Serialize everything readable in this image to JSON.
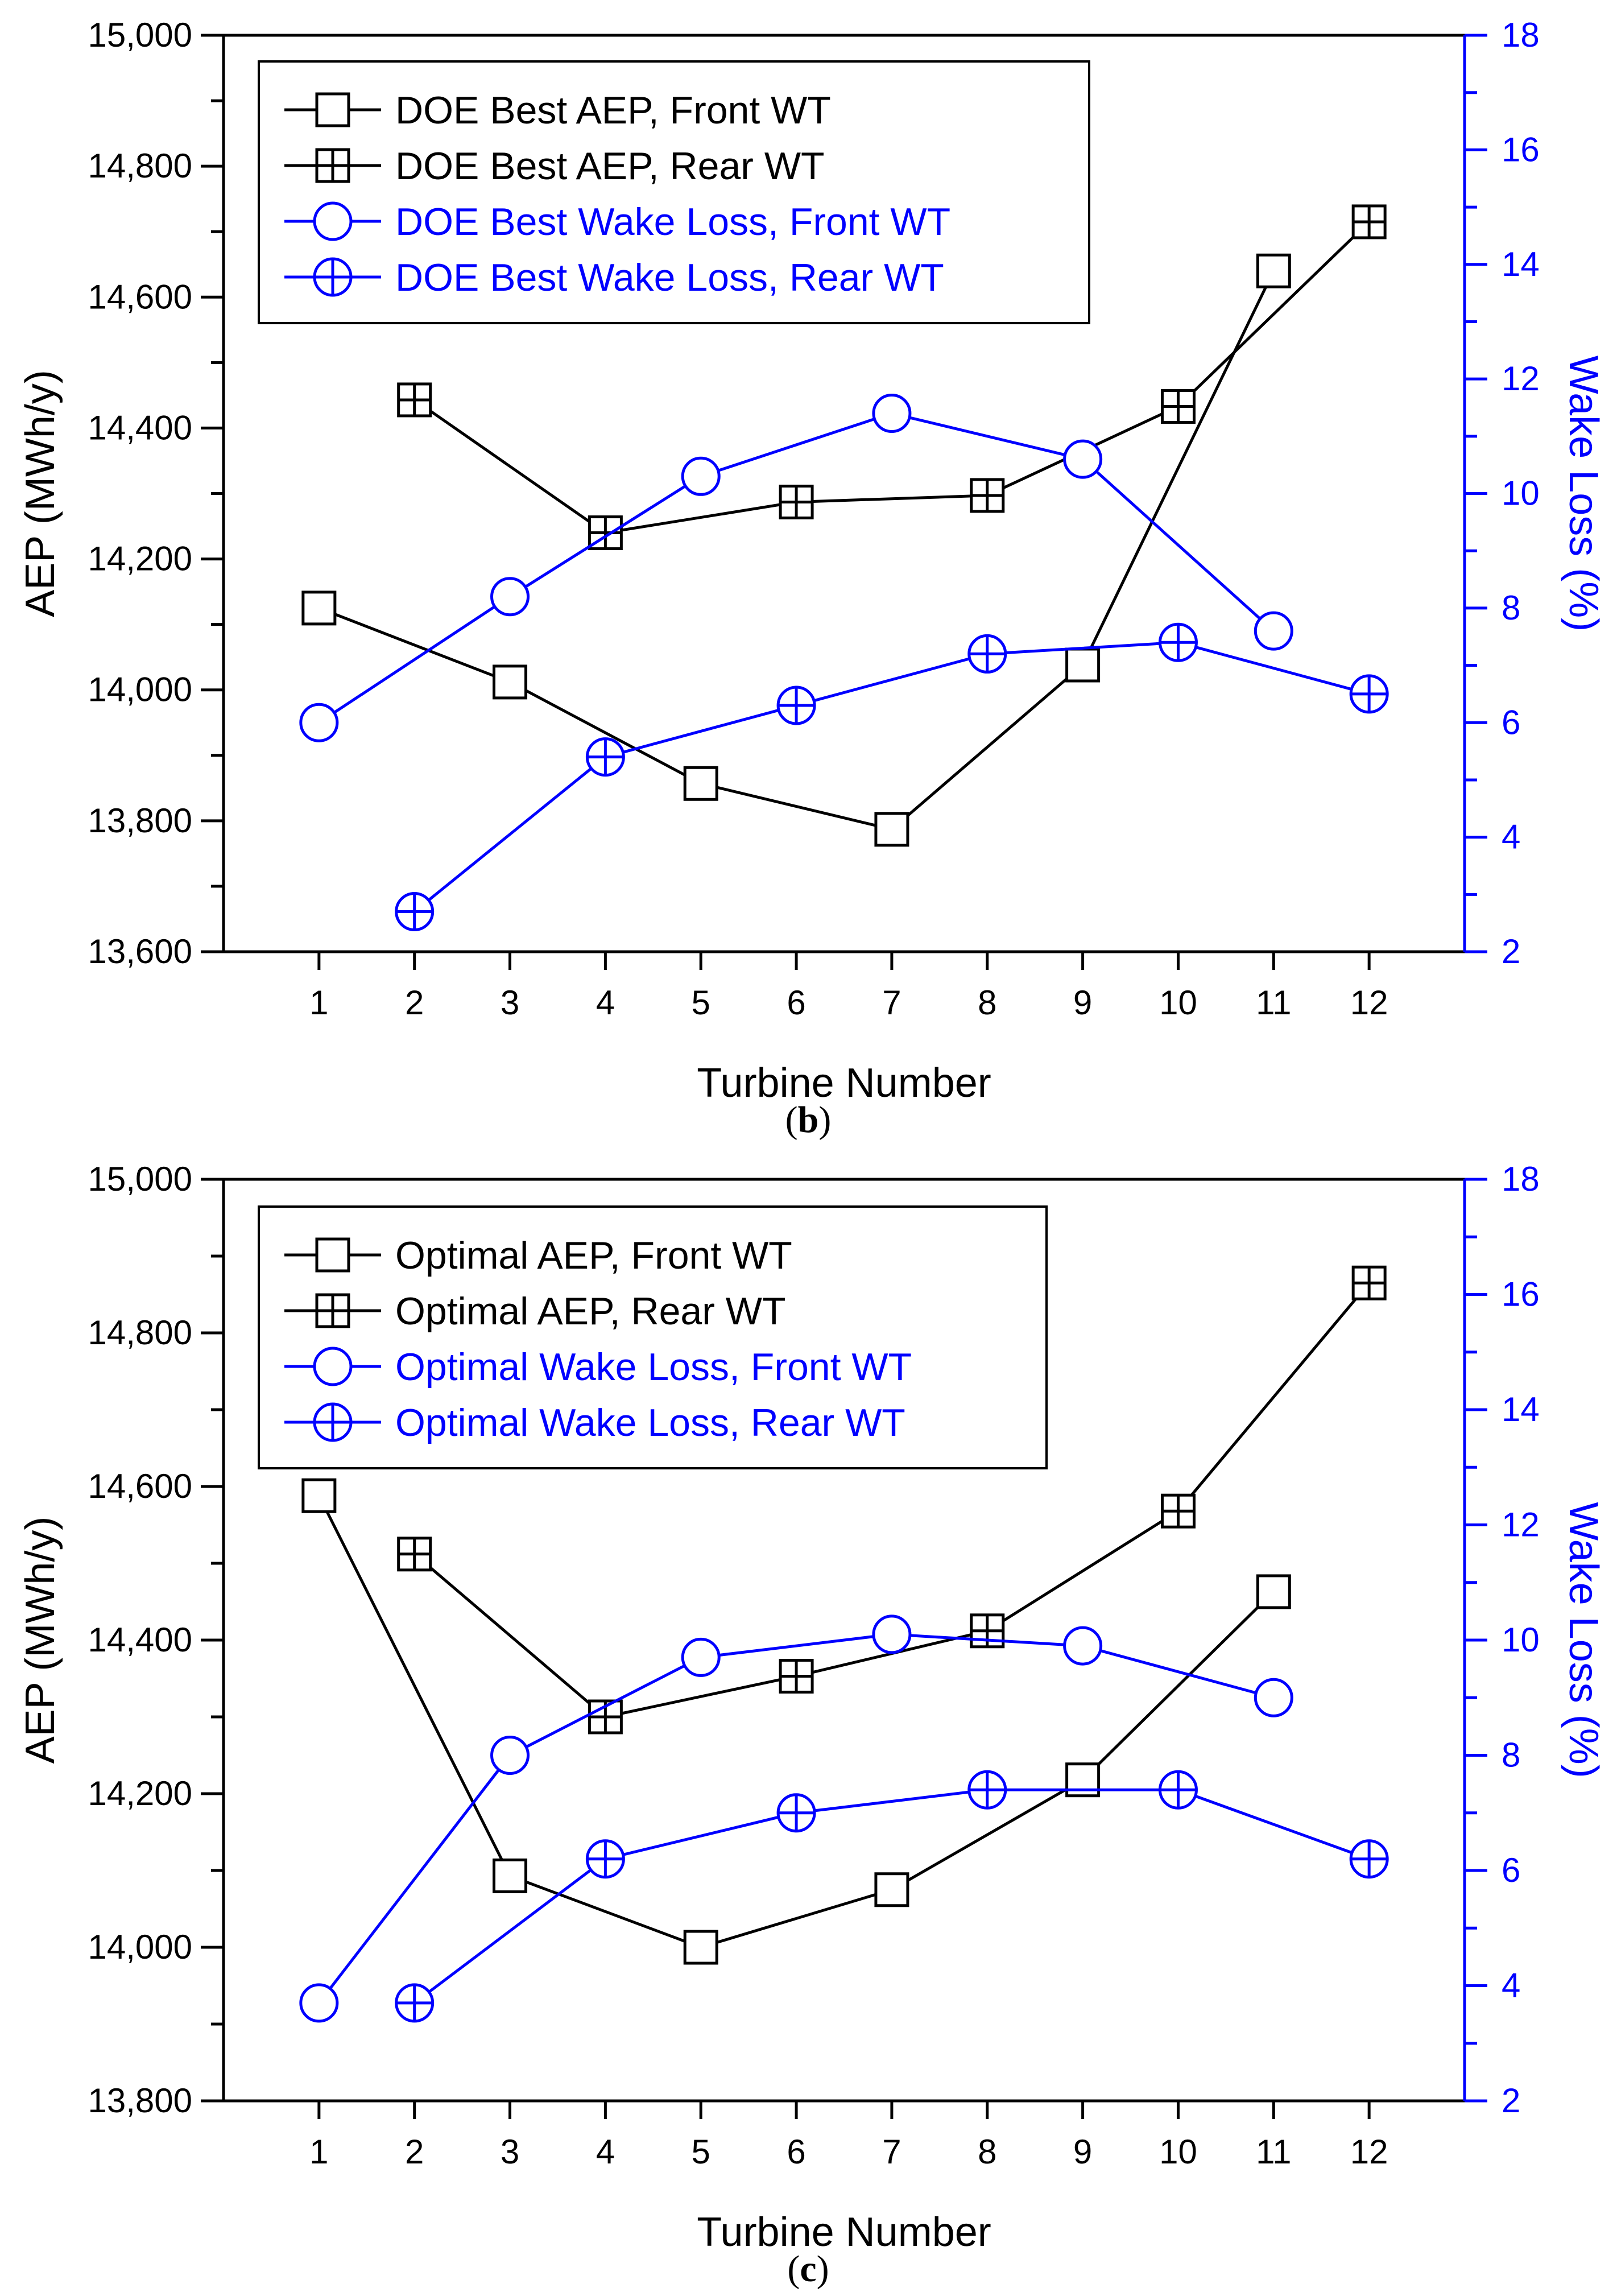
{
  "colors": {
    "primary": "#000000",
    "secondary": "#0000ff"
  },
  "chart_data": [
    {
      "type": "line",
      "caption": "(b)",
      "caption_letter": "b",
      "xlabel": "Turbine Number",
      "ylabel": "AEP (MWh/y)",
      "y2label": "Wake Loss (%)",
      "ylim": [
        13600,
        15000
      ],
      "y2lim": [
        2,
        18
      ],
      "xticks": [
        "1",
        "2",
        "3",
        "4",
        "5",
        "6",
        "7",
        "8",
        "9",
        "10",
        "11",
        "12"
      ],
      "yticks": [
        "13,600",
        "13,800",
        "14,000",
        "14,200",
        "14,400",
        "14,600",
        "14,800",
        "15,000"
      ],
      "y2ticks": [
        "2",
        "4",
        "6",
        "8",
        "10",
        "12",
        "14",
        "16",
        "18"
      ],
      "series": [
        {
          "name": "DOE Best AEP, Front WT",
          "axis": "left",
          "marker": "square",
          "color": "#000000",
          "x": [
            1,
            3,
            5,
            7,
            9,
            11
          ],
          "values": [
            14125,
            14012,
            13857,
            13787,
            14038,
            14640
          ]
        },
        {
          "name": "DOE Best AEP, Rear WT",
          "axis": "left",
          "marker": "square-plus",
          "color": "#000000",
          "x": [
            2,
            4,
            6,
            8,
            10,
            12
          ],
          "values": [
            14443,
            14240,
            14287,
            14297,
            14433,
            14715
          ]
        },
        {
          "name": "DOE Best Wake Loss, Front WT",
          "axis": "right",
          "marker": "circle",
          "color": "#0000ff",
          "x": [
            1,
            3,
            5,
            7,
            9,
            11
          ],
          "values": [
            6.0,
            8.2,
            10.3,
            11.4,
            10.6,
            7.6
          ]
        },
        {
          "name": "DOE Best Wake Loss, Rear WT",
          "axis": "right",
          "marker": "circle-plus",
          "color": "#0000ff",
          "x": [
            2,
            4,
            6,
            8,
            10,
            12
          ],
          "values": [
            2.7,
            5.4,
            6.3,
            7.2,
            7.4,
            6.5
          ]
        }
      ]
    },
    {
      "type": "line",
      "caption": "(c)",
      "caption_letter": "c",
      "xlabel": "Turbine Number",
      "ylabel": "AEP (MWh/y)",
      "y2label": "Wake Loss (%)",
      "ylim": [
        13800,
        15000
      ],
      "y2lim": [
        2,
        18
      ],
      "xticks": [
        "1",
        "2",
        "3",
        "4",
        "5",
        "6",
        "7",
        "8",
        "9",
        "10",
        "11",
        "12"
      ],
      "yticks": [
        "13,800",
        "14,000",
        "14,200",
        "14,400",
        "14,600",
        "14,800",
        "15,000"
      ],
      "y2ticks": [
        "2",
        "4",
        "6",
        "8",
        "10",
        "12",
        "14",
        "16",
        "18"
      ],
      "series": [
        {
          "name": "Optimal AEP, Front WT",
          "axis": "left",
          "marker": "square",
          "color": "#000000",
          "x": [
            1,
            3,
            5,
            7,
            9,
            11
          ],
          "values": [
            14588,
            14093,
            14000,
            14075,
            14218,
            14463
          ]
        },
        {
          "name": "Optimal AEP, Rear WT",
          "axis": "left",
          "marker": "square-plus",
          "color": "#000000",
          "x": [
            2,
            4,
            6,
            8,
            10,
            12
          ],
          "values": [
            14512,
            14300,
            14353,
            14412,
            14568,
            14865
          ]
        },
        {
          "name": "Optimal Wake Loss, Front WT",
          "axis": "right",
          "marker": "circle",
          "color": "#0000ff",
          "x": [
            1,
            3,
            5,
            7,
            9,
            11
          ],
          "values": [
            3.7,
            8.0,
            9.7,
            10.1,
            9.9,
            9.0
          ]
        },
        {
          "name": "Optimal Wake Loss, Rear WT",
          "axis": "right",
          "marker": "circle-plus",
          "color": "#0000ff",
          "x": [
            2,
            4,
            6,
            8,
            10,
            12
          ],
          "values": [
            3.7,
            6.2,
            7.0,
            7.4,
            7.4,
            6.2
          ]
        }
      ]
    }
  ]
}
